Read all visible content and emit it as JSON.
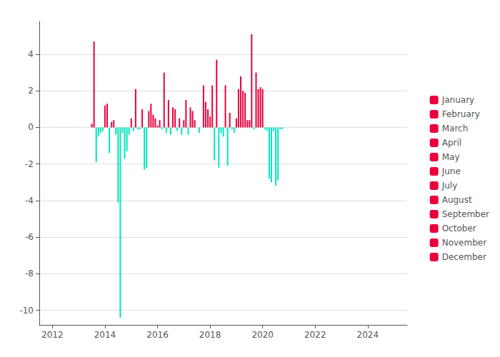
{
  "chart_data": {
    "type": "bar",
    "xlim": [
      2011.5,
      2025.5
    ],
    "xticks": [
      2012,
      2014,
      2016,
      2018,
      2020,
      2022,
      2024
    ],
    "ylim": [
      -10.8,
      5.8
    ],
    "yticks": [
      -10,
      -8,
      -6,
      -4,
      -2,
      0,
      2,
      4
    ],
    "grid": true,
    "legend": "right",
    "series": [
      {
        "name": "January",
        "color": "#e8003c",
        "x": [
          2014.0,
          2015.0,
          2016.0,
          2017.0,
          2018.0,
          2019.0,
          2020.0
        ],
        "values": [
          1.2,
          0.5,
          0.1,
          0.4,
          0.6,
          0.5,
          2.1
        ],
        "colors": [
          "#e8003c",
          "#e8003c",
          "#e8003c",
          "#e8003c",
          "#e8003c",
          "#e8003c",
          "#e8003c"
        ]
      },
      {
        "name": "February",
        "color": "#e8003c",
        "x": [
          2014.083,
          2015.083,
          2016.083,
          2017.083,
          2018.083,
          2019.083,
          2020.083
        ],
        "values": [
          1.3,
          -0.2,
          0.4,
          1.5,
          2.3,
          2.1,
          -0.1
        ],
        "colors": [
          "#e8003c",
          "#00e5c0",
          "#e8003c",
          "#e8003c",
          "#e8003c",
          "#e8003c",
          "#00e5c0"
        ]
      },
      {
        "name": "March",
        "color": "#e8003c",
        "x": [
          2014.167,
          2015.167,
          2016.167,
          2017.167,
          2018.167,
          2019.167,
          2020.167
        ],
        "values": [
          -1.4,
          2.1,
          -0.1,
          -0.4,
          -1.8,
          2.8,
          -0.2
        ],
        "colors": [
          "#00e5c0",
          "#e8003c",
          "#00e5c0",
          "#00e5c0",
          "#00e5c0",
          "#e8003c",
          "#00e5c0"
        ]
      },
      {
        "name": "April",
        "color": "#e8003c",
        "x": [
          2014.25,
          2015.25,
          2016.25,
          2017.25,
          2018.25,
          2019.25,
          2020.25
        ],
        "values": [
          0.3,
          -0.1,
          3.0,
          1.1,
          3.7,
          2.0,
          -2.8
        ],
        "colors": [
          "#e8003c",
          "#00e5c0",
          "#e8003c",
          "#e8003c",
          "#e8003c",
          "#e8003c",
          "#00e5c0"
        ]
      },
      {
        "name": "May",
        "color": "#e8003c",
        "x": [
          2014.333,
          2015.333,
          2016.333,
          2017.333,
          2018.333,
          2019.333,
          2020.333
        ],
        "values": [
          0.4,
          -0.1,
          -0.3,
          0.9,
          -2.2,
          1.9,
          -3.0
        ],
        "colors": [
          "#e8003c",
          "#00e5c0",
          "#00e5c0",
          "#e8003c",
          "#00e5c0",
          "#e8003c",
          "#00e5c0"
        ]
      },
      {
        "name": "June",
        "color": "#e8003c",
        "x": [
          2014.417,
          2015.417,
          2016.417,
          2017.417,
          2018.417,
          2019.417,
          2020.417
        ],
        "values": [
          -0.4,
          1.0,
          1.5,
          0.4,
          -0.3,
          0.4,
          -0.2
        ],
        "colors": [
          "#00e5c0",
          "#e8003c",
          "#e8003c",
          "#e8003c",
          "#00e5c0",
          "#e8003c",
          "#00e5c0"
        ]
      },
      {
        "name": "July",
        "color": "#e8003c",
        "x": [
          2013.5,
          2014.5,
          2015.5,
          2016.5,
          2017.5,
          2018.5,
          2019.5,
          2020.5
        ],
        "values": [
          0.2,
          -4.1,
          -2.3,
          -0.4,
          0.0,
          -0.5,
          0.4,
          -3.2
        ],
        "colors": [
          "#e8003c",
          "#00e5c0",
          "#00e5c0",
          "#00e5c0",
          "#e8003c",
          "#00e5c0",
          "#e8003c",
          "#00e5c0"
        ]
      },
      {
        "name": "August",
        "color": "#e8003c",
        "x": [
          2013.583,
          2014.583,
          2015.583,
          2016.583,
          2017.583,
          2018.583,
          2019.583,
          2020.583
        ],
        "values": [
          4.7,
          -10.4,
          -2.2,
          1.1,
          -0.3,
          2.3,
          5.1,
          -2.9
        ],
        "colors": [
          "#e8003c",
          "#00e5c0",
          "#00e5c0",
          "#e8003c",
          "#00e5c0",
          "#e8003c",
          "#e8003c",
          "#00e5c0"
        ]
      },
      {
        "name": "September",
        "color": "#e8003c",
        "x": [
          2013.667,
          2014.667,
          2015.667,
          2016.667,
          2017.667,
          2018.667,
          2019.667,
          2020.667
        ],
        "values": [
          -1.9,
          -0.3,
          0.9,
          1.0,
          0.0,
          -2.1,
          -0.1,
          -0.1
        ],
        "colors": [
          "#00e5c0",
          "#00e5c0",
          "#e8003c",
          "#e8003c",
          "#e8003c",
          "#00e5c0",
          "#00e5c0",
          "#00e5c0"
        ]
      },
      {
        "name": "October",
        "color": "#e8003c",
        "x": [
          2013.75,
          2014.75,
          2015.75,
          2016.75,
          2017.75,
          2018.75,
          2019.75,
          2020.75
        ],
        "values": [
          -0.5,
          -1.7,
          1.3,
          -0.2,
          2.3,
          0.8,
          3.0,
          -0.1
        ],
        "colors": [
          "#00e5c0",
          "#00e5c0",
          "#e8003c",
          "#00e5c0",
          "#e8003c",
          "#e8003c",
          "#e8003c",
          "#00e5c0"
        ]
      },
      {
        "name": "November",
        "color": "#e8003c",
        "x": [
          2013.833,
          2014.833,
          2015.833,
          2016.833,
          2017.833,
          2018.833,
          2019.833
        ],
        "values": [
          -0.3,
          -1.3,
          0.7,
          0.5,
          1.4,
          -0.1,
          2.1
        ],
        "colors": [
          "#00e5c0",
          "#00e5c0",
          "#e8003c",
          "#e8003c",
          "#e8003c",
          "#00e5c0",
          "#e8003c"
        ]
      },
      {
        "name": "December",
        "color": "#e8003c",
        "x": [
          2013.917,
          2014.917,
          2015.917,
          2016.917,
          2017.917,
          2018.917,
          2019.917
        ],
        "values": [
          -0.2,
          -0.4,
          0.5,
          -0.4,
          1.0,
          -0.3,
          2.2
        ],
        "colors": [
          "#00e5c0",
          "#00e5c0",
          "#e8003c",
          "#00e5c0",
          "#e8003c",
          "#00e5c0",
          "#e8003c"
        ]
      }
    ]
  }
}
